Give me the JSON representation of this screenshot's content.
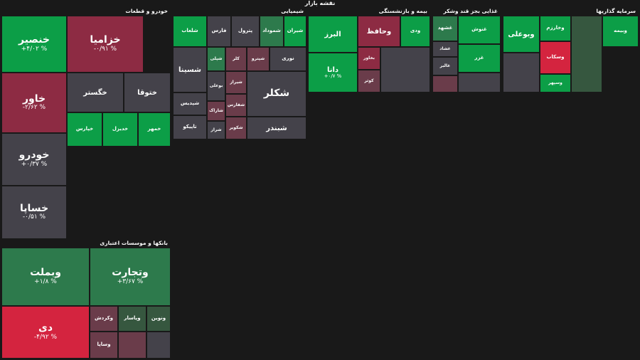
{
  "title": "نقشه بازار",
  "colors": {
    "strong_pos": "#0c9e47",
    "pos": "#2d7a4c",
    "mild_pos": "#36573f",
    "neutral": "#44424a",
    "mild_neg": "#6a3c4a",
    "neg": "#8d2b43",
    "strong_neg": "#d4243f"
  },
  "chart_data": {
    "type": "treemap",
    "sectors": [
      {
        "name": "خودرو و قطعات",
        "tiles": [
          {
            "name": "خنصیر",
            "change": "+۴/۰۲ %",
            "tone": "strong_pos"
          },
          {
            "name": "خزامیا",
            "change": "-۰/۹۱ %",
            "tone": "neg"
          },
          {
            "name": "خاور",
            "change": "-۲/۶۲ %",
            "tone": "neg"
          },
          {
            "name": "خگستر",
            "change": "",
            "tone": "neutral"
          },
          {
            "name": "ختوقا",
            "change": "",
            "tone": "neutral"
          },
          {
            "name": "خپارس",
            "change": "",
            "tone": "strong_pos"
          },
          {
            "name": "خدیزل",
            "change": "",
            "tone": "strong_pos"
          },
          {
            "name": "خمهر",
            "change": "",
            "tone": "strong_pos"
          },
          {
            "name": "خودرو",
            "change": "+۰/۳۷ %",
            "tone": "neutral"
          },
          {
            "name": "خساپا",
            "change": "-۰/۵۱ %",
            "tone": "neutral"
          }
        ]
      },
      {
        "name": "بانکها و موسسات اعتباری",
        "tiles": [
          {
            "name": "وبملت",
            "change": "+۱/۸ %",
            "tone": "pos"
          },
          {
            "name": "وتجارت",
            "change": "+۳/۶۷ %",
            "tone": "pos"
          },
          {
            "name": "دی",
            "change": "-۴/۹۲ %",
            "tone": "strong_neg"
          },
          {
            "name": "وکردش",
            "change": "",
            "tone": "mild_neg"
          },
          {
            "name": "وپاسار",
            "change": "",
            "tone": "mild_pos"
          },
          {
            "name": "ونوین",
            "change": "",
            "tone": "mild_pos"
          },
          {
            "name": "وساپا",
            "change": "",
            "tone": "mild_neg"
          },
          {
            "name": "",
            "change": "",
            "tone": "mild_neg"
          },
          {
            "name": "",
            "change": "",
            "tone": "neutral"
          }
        ]
      },
      {
        "name": "شیمیایی",
        "tiles": [
          {
            "name": "شلعاب",
            "change": "",
            "tone": "strong_pos"
          },
          {
            "name": "فارس",
            "change": "",
            "tone": "neutral"
          },
          {
            "name": "پترول",
            "change": "",
            "tone": "neutral"
          },
          {
            "name": "شموداد",
            "change": "",
            "tone": "pos"
          },
          {
            "name": "شیران",
            "change": "",
            "tone": "strong_pos"
          },
          {
            "name": "شسینا",
            "change": "",
            "tone": "neutral"
          },
          {
            "name": "شپلی",
            "change": "",
            "tone": "pos"
          },
          {
            "name": "کلر",
            "change": "",
            "tone": "mild_neg"
          },
          {
            "name": "شپترو",
            "change": "",
            "tone": "mild_neg"
          },
          {
            "name": "نوری",
            "change": "",
            "tone": "neutral"
          },
          {
            "name": "شپدیس",
            "change": "",
            "tone": "neutral"
          },
          {
            "name": "تاپیکو",
            "change": "",
            "tone": "neutral"
          },
          {
            "name": "شیراز",
            "change": "",
            "tone": "mild_neg"
          },
          {
            "name": "بوعلی",
            "change": "",
            "tone": "neutral"
          },
          {
            "name": "شفارس",
            "change": "",
            "tone": "mild_neg"
          },
          {
            "name": "شکلر",
            "change": "",
            "tone": "neutral"
          },
          {
            "name": "شاراک",
            "change": "",
            "tone": "mild_neg"
          },
          {
            "name": "شکویر",
            "change": "",
            "tone": "mild_neg"
          },
          {
            "name": "شبندر",
            "change": "",
            "tone": "neutral"
          },
          {
            "name": "شراز",
            "change": "",
            "tone": "neutral"
          }
        ]
      },
      {
        "name": "بیمه و بازنشستگی",
        "tiles": [
          {
            "name": "البرز",
            "change": "",
            "tone": "strong_pos"
          },
          {
            "name": "وحافظ",
            "change": "",
            "tone": "neg"
          },
          {
            "name": "ودی",
            "change": "",
            "tone": "strong_pos"
          },
          {
            "name": "دانا",
            "change": "+۰/۷ %",
            "tone": "strong_pos"
          },
          {
            "name": "بخاور",
            "change": "",
            "tone": "neg"
          },
          {
            "name": "کوثر",
            "change": "",
            "tone": "mild_neg"
          },
          {
            "name": "",
            "change": "",
            "tone": "neutral"
          }
        ]
      },
      {
        "name": "غذایی بجز قند وشکر",
        "tiles": [
          {
            "name": "غشهد",
            "change": "",
            "tone": "pos"
          },
          {
            "name": "غشاد",
            "change": "",
            "tone": "neutral"
          },
          {
            "name": "غالبر",
            "change": "",
            "tone": "neutral"
          },
          {
            "name": "غنوش",
            "change": "",
            "tone": "strong_pos"
          },
          {
            "name": "غزر",
            "change": "",
            "tone": "strong_pos"
          },
          {
            "name": "",
            "change": "",
            "tone": "mild_neg"
          },
          {
            "name": "",
            "change": "",
            "tone": "neutral"
          }
        ]
      },
      {
        "name": "سرمایه گذاریها",
        "tiles": [
          {
            "name": "وبوعلی",
            "change": "",
            "tone": "strong_pos"
          },
          {
            "name": "وخارزم",
            "change": "",
            "tone": "strong_pos"
          },
          {
            "name": "وبیمه",
            "change": "",
            "tone": "strong_pos"
          },
          {
            "name": "وسکاب",
            "change": "",
            "tone": "strong_neg"
          },
          {
            "name": "وسپهر",
            "change": "",
            "tone": "strong_pos"
          },
          {
            "name": "",
            "change": "",
            "tone": "neutral"
          },
          {
            "name": "",
            "change": "",
            "tone": "mild_pos"
          }
        ]
      }
    ]
  }
}
